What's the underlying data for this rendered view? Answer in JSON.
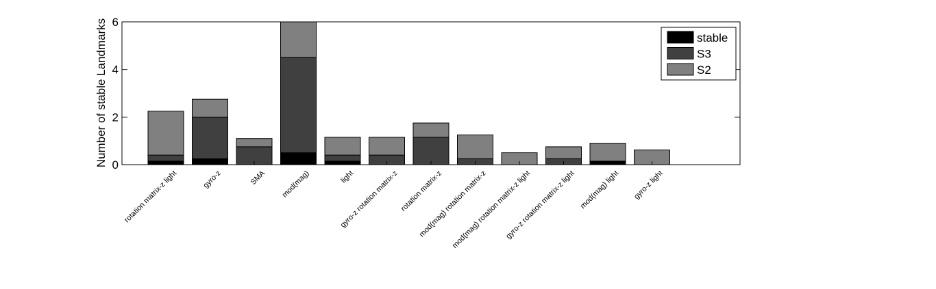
{
  "chart_data": {
    "type": "bar",
    "stacked": true,
    "ylabel": "Number of stable Landmarks",
    "xlabel": "",
    "ylim": [
      0,
      6
    ],
    "yticks": [
      "0",
      "2",
      "4",
      "6"
    ],
    "categories": [
      "rotation matrix-z  light",
      "gyro-z",
      "SMA",
      "mod(mag)",
      "light",
      "gyro-z  rotation matrix-z",
      "rotation matrix-z",
      "mod(mag)  rotation matrix-z",
      "mod(mag)  rotation matrix-z  light",
      "gyro-z  rotation matrix-z  light",
      "mod(mag)  light",
      "gyro-z  light"
    ],
    "series": [
      {
        "name": "stable",
        "color": "#000000",
        "values": [
          0.15,
          0.25,
          0,
          0.5,
          0.15,
          0,
          0,
          0,
          0,
          0,
          0.15,
          0
        ]
      },
      {
        "name": "S3",
        "color": "#404040",
        "values": [
          0.25,
          1.75,
          0.75,
          4.0,
          0.25,
          0.4,
          1.15,
          0.25,
          0,
          0.25,
          0,
          0
        ]
      },
      {
        "name": "S2",
        "color": "#808080",
        "values": [
          1.85,
          0.75,
          0.35,
          1.5,
          0.75,
          0.75,
          0.6,
          1.0,
          0.5,
          0.5,
          0.75,
          0.62
        ]
      }
    ],
    "legend_position": "top-right",
    "grid": false
  }
}
